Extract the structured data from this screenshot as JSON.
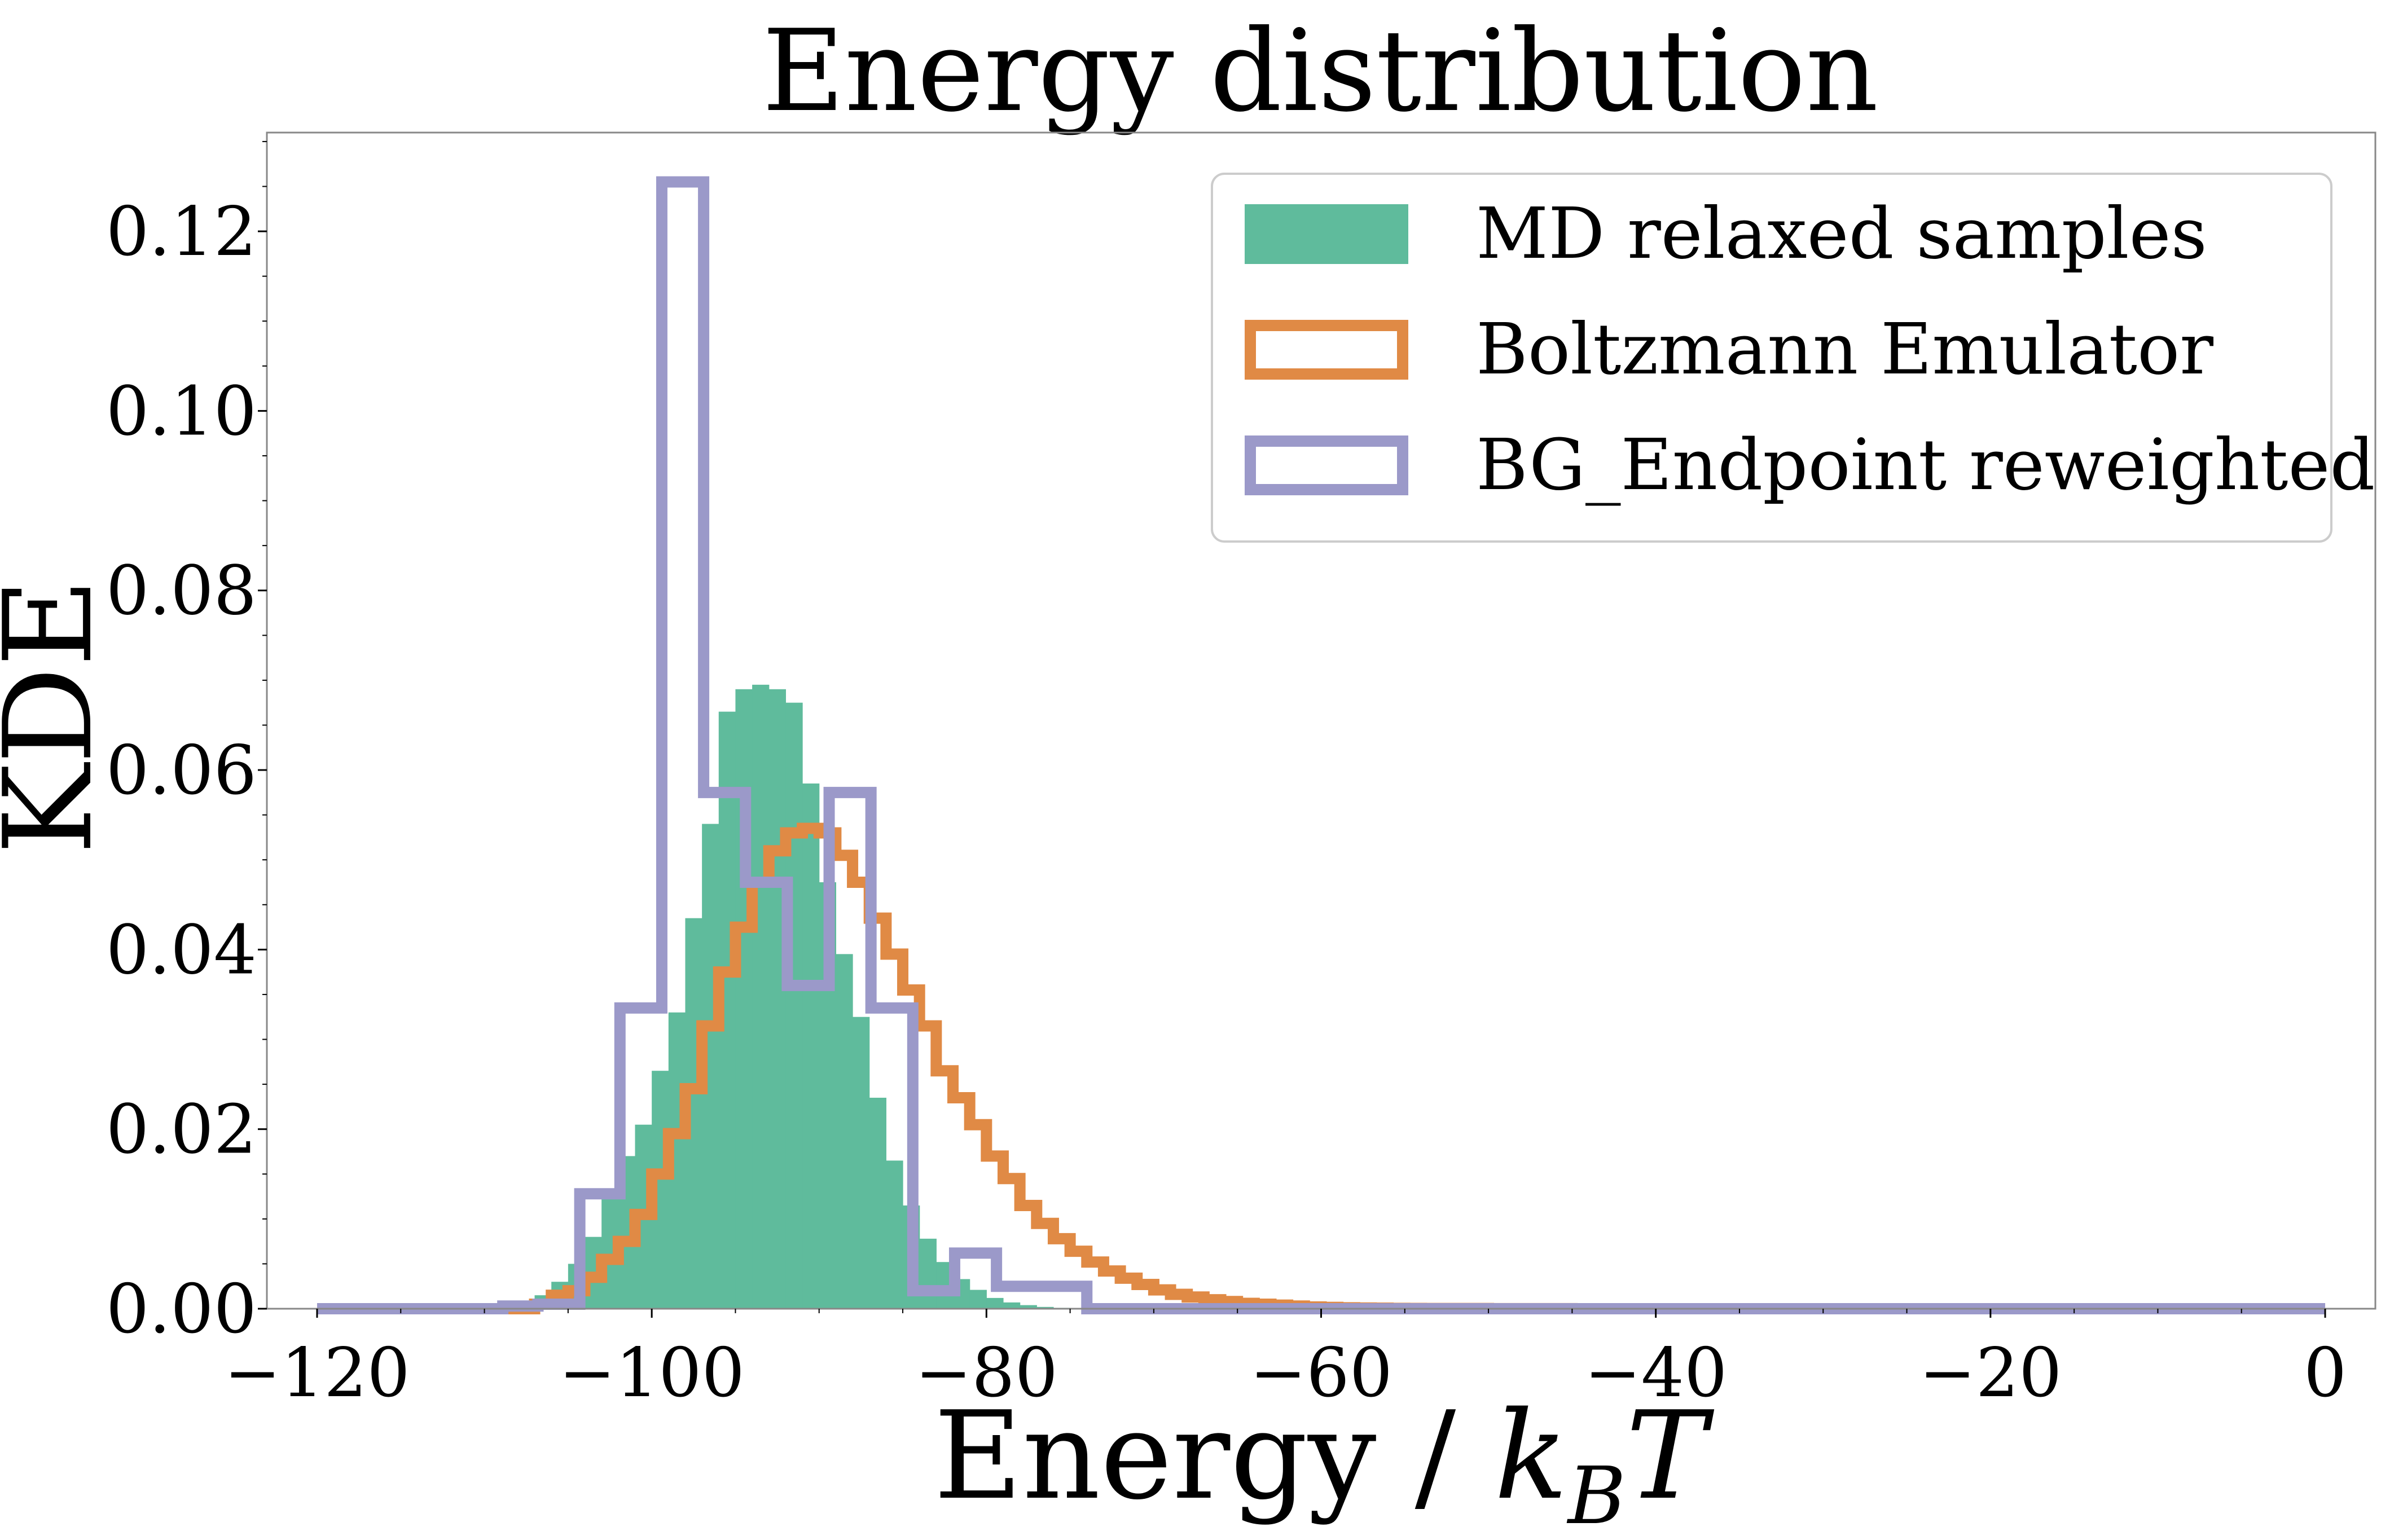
{
  "chart_data": {
    "type": "histogram",
    "title": "Energy distribution",
    "xlabel": "Energy / k_BT",
    "xlabel_parts": {
      "main": "Energy / ",
      "k": "k",
      "sub": "B",
      "t": "T"
    },
    "ylabel": "KDE",
    "xlim": [
      -123,
      3
    ],
    "ylim": [
      0,
      0.131
    ],
    "xticks": [
      -120,
      -100,
      -80,
      -60,
      -40,
      -20,
      0
    ],
    "xtick_labels": [
      "−120",
      "−100",
      "−80",
      "−60",
      "−40",
      "−20",
      "0"
    ],
    "yticks": [
      0,
      0.02,
      0.04,
      0.06,
      0.08,
      0.1,
      0.12
    ],
    "ytick_labels": [
      "0.00",
      "0.02",
      "0.04",
      "0.06",
      "0.08",
      "0.10",
      "0.12"
    ],
    "grid": false,
    "legend_position": "upper right",
    "series": [
      {
        "name": "MD relaxed samples",
        "style": "filled",
        "color": "#5fbb9c",
        "bin_edges": [
          -108,
          -107,
          -106,
          -105,
          -104,
          -103,
          -102,
          -101,
          -100,
          -99,
          -98,
          -97,
          -96,
          -95,
          -94,
          -93,
          -92,
          -91,
          -90,
          -89,
          -88,
          -87,
          -86,
          -85,
          -84,
          -83,
          -82,
          -81,
          -80,
          -79,
          -78,
          -77,
          -76,
          -75,
          -74
        ],
        "values": [
          0.0005,
          0.0015,
          0.003,
          0.005,
          0.008,
          0.0125,
          0.017,
          0.0205,
          0.0265,
          0.033,
          0.0435,
          0.054,
          0.0665,
          0.069,
          0.0695,
          0.069,
          0.0675,
          0.0585,
          0.0475,
          0.0395,
          0.0325,
          0.0235,
          0.0165,
          0.0115,
          0.0078,
          0.0052,
          0.0033,
          0.0021,
          0.0012,
          0.0007,
          0.0004,
          0.0002,
          0.0001,
          5e-05
        ]
      },
      {
        "name": "Boltzmann Emulator",
        "style": "step",
        "color": "#e08a45",
        "bin_edges": [
          -120,
          -107,
          -106,
          -105,
          -104,
          -103,
          -102,
          -101,
          -100,
          -99,
          -98,
          -97,
          -96,
          -95,
          -94,
          -93,
          -92,
          -91,
          -90,
          -89,
          -88,
          -87,
          -86,
          -85,
          -84,
          -83,
          -82,
          -81,
          -80,
          -79,
          -78,
          -77,
          -76,
          -75,
          -74,
          -73,
          -72,
          -71,
          -70,
          -69,
          -68,
          -67,
          -66,
          -65,
          -64,
          -63,
          -62,
          -61,
          -60,
          -59,
          -58,
          -57,
          -56,
          -55,
          -54,
          -50,
          -45,
          -30,
          0
        ],
        "values": [
          0.0,
          0.0005,
          0.0015,
          0.002,
          0.0035,
          0.0055,
          0.0075,
          0.0105,
          0.015,
          0.0195,
          0.0245,
          0.0315,
          0.0375,
          0.0425,
          0.0475,
          0.051,
          0.053,
          0.0535,
          0.053,
          0.0505,
          0.0475,
          0.0435,
          0.0395,
          0.0355,
          0.0315,
          0.0265,
          0.0235,
          0.0205,
          0.017,
          0.0145,
          0.0115,
          0.0095,
          0.0078,
          0.0064,
          0.0052,
          0.0042,
          0.0034,
          0.0027,
          0.0021,
          0.0016,
          0.0013,
          0.001,
          0.0008,
          0.0006,
          0.0005,
          0.0004,
          0.0003,
          0.0002,
          0.00015,
          0.0001,
          8e-05,
          6e-05,
          4e-05,
          3e-05,
          2e-05,
          1e-05,
          0.0,
          0.0
        ]
      },
      {
        "name": "BG_Endpoint reweighted",
        "style": "step",
        "color": "#9b99c9",
        "bin_edges": [
          -120,
          -108.9,
          -106.8,
          -104.3,
          -101.9,
          -99.4,
          -96.9,
          -94.4,
          -91.9,
          -89.4,
          -86.9,
          -84.4,
          -81.9,
          -79.4,
          -74,
          0
        ],
        "values": [
          0.0,
          0.0003,
          0.0005,
          0.0128,
          0.0335,
          0.1255,
          0.0575,
          0.0475,
          0.036,
          0.0575,
          0.0335,
          0.002,
          0.0062,
          0.0025,
          0.0
        ]
      }
    ]
  }
}
